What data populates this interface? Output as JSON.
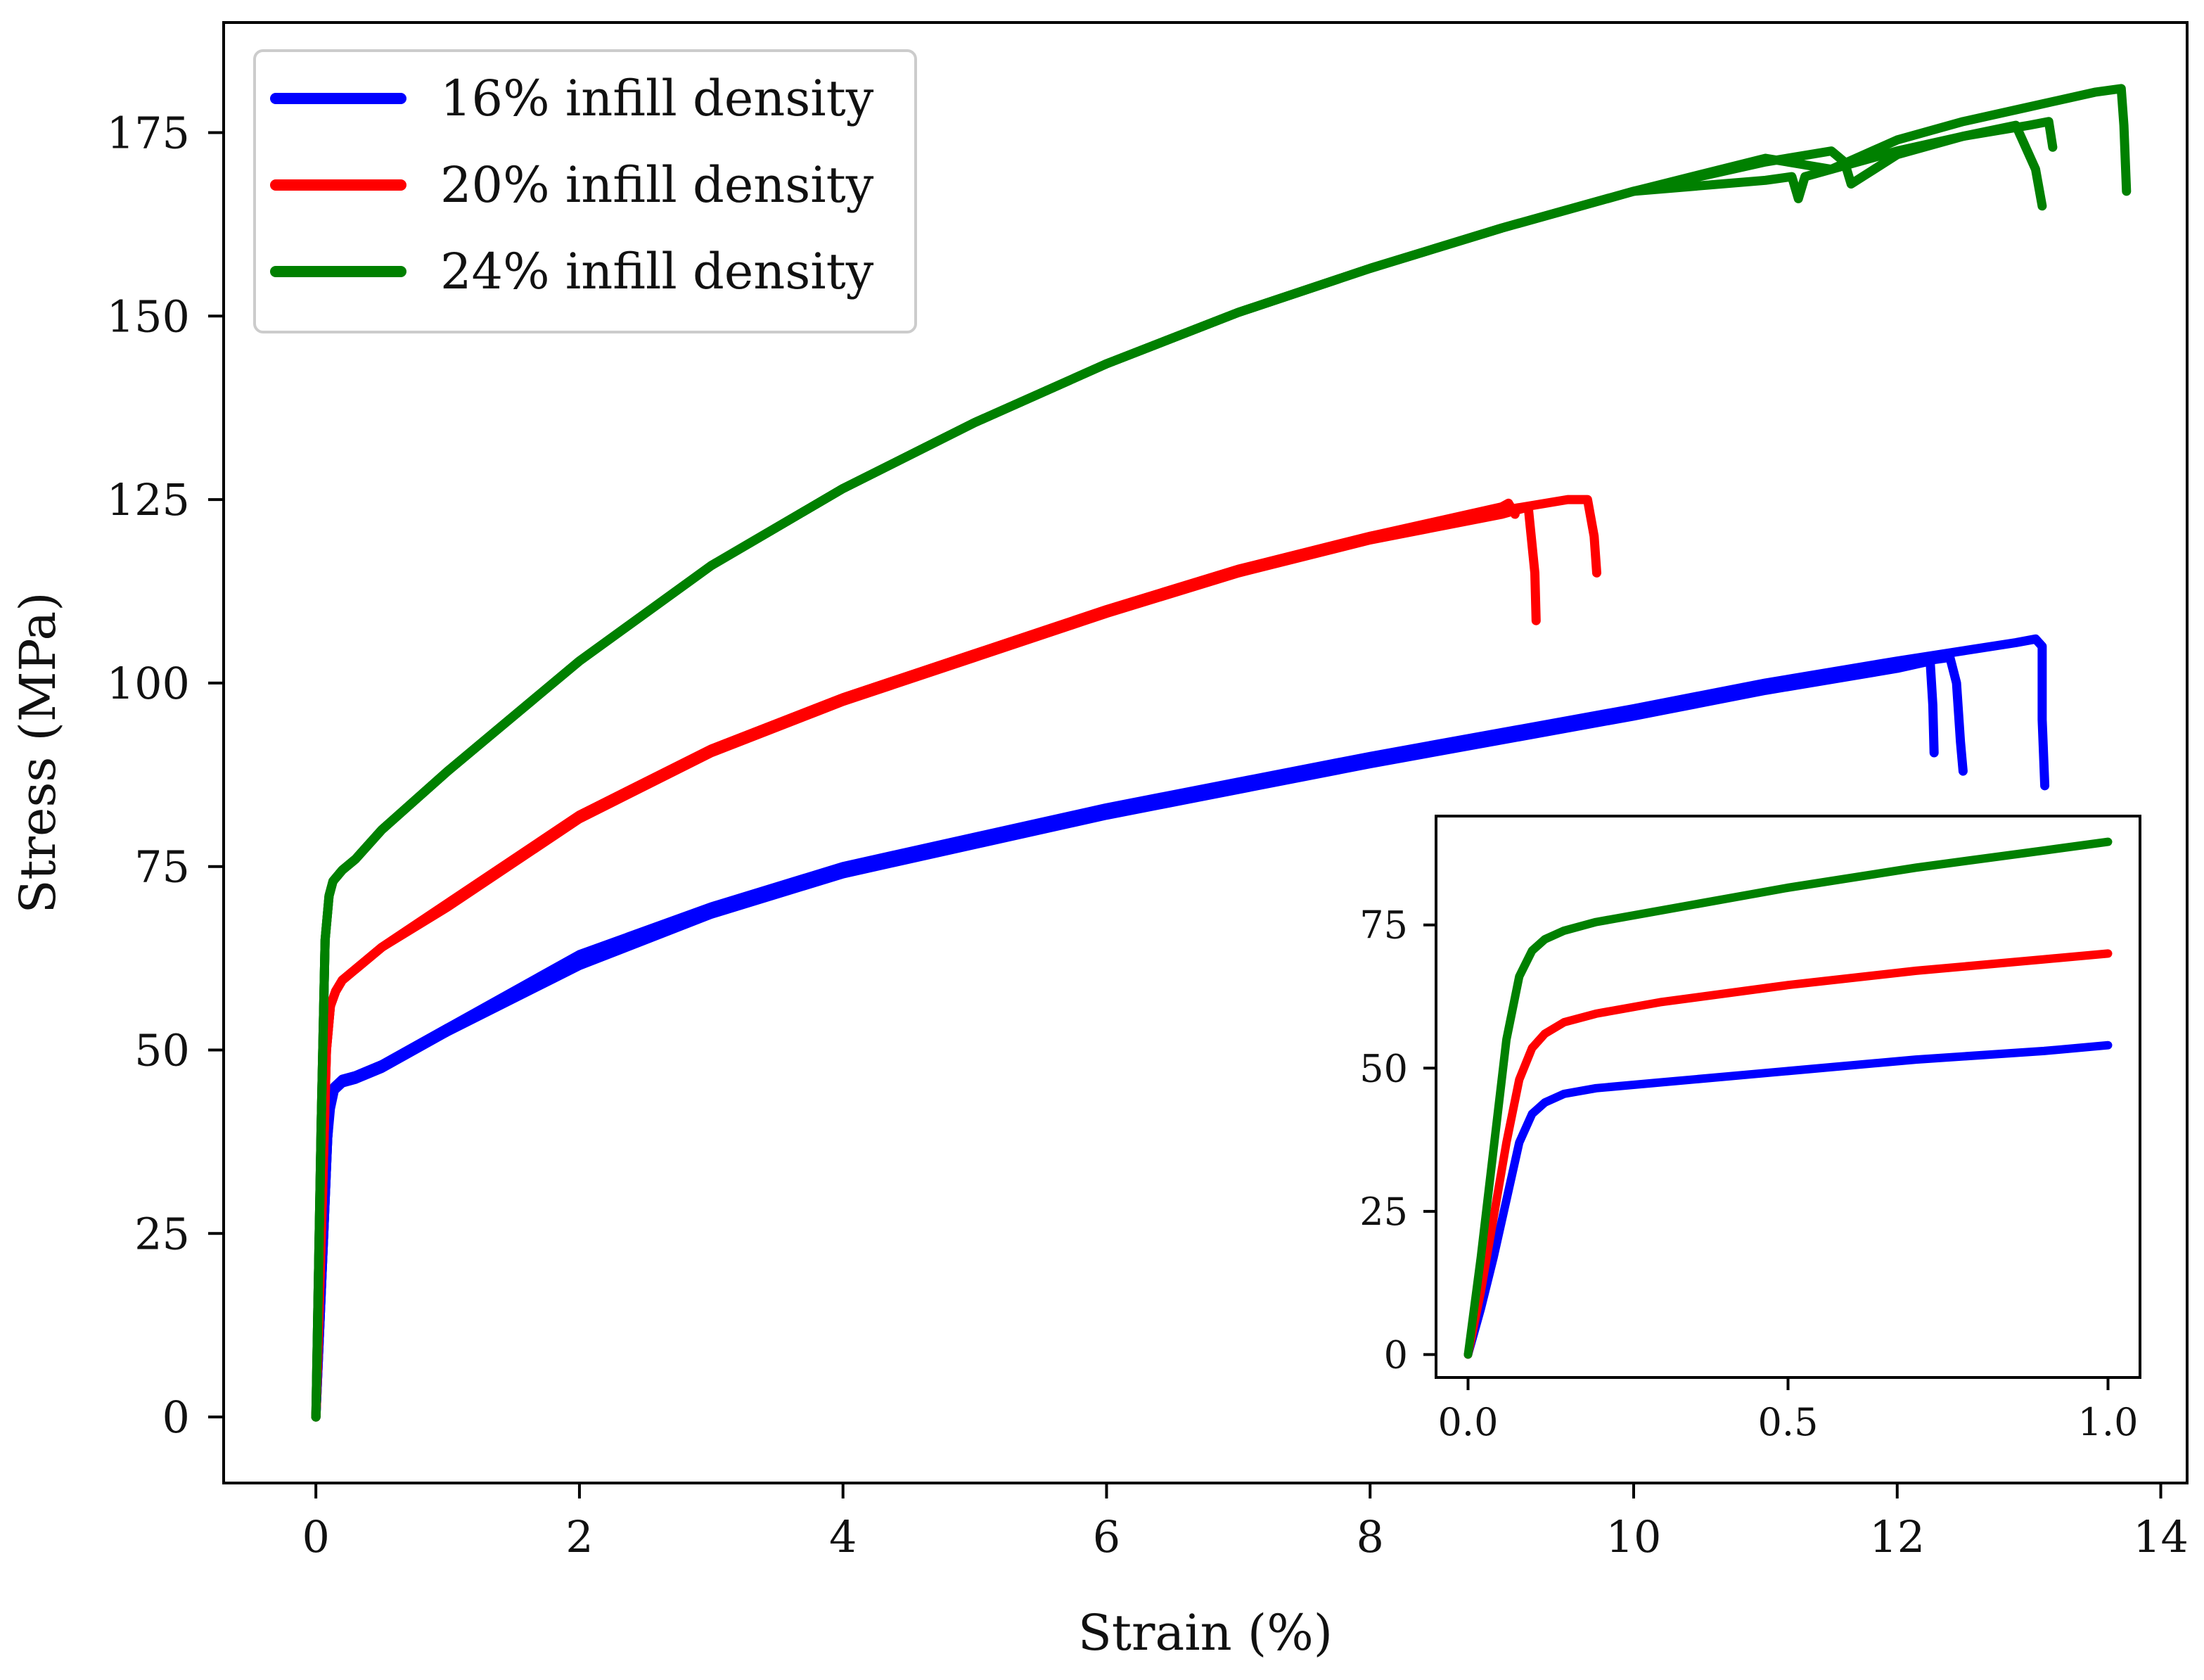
{
  "chart_data": [
    {
      "type": "line",
      "title": "",
      "xlabel": "Strain (%)",
      "ylabel": "Stress (MPa)",
      "xlim": [
        -0.7,
        14.2
      ],
      "ylim": [
        -9,
        190
      ],
      "xticks": [
        0,
        2,
        4,
        6,
        8,
        10,
        12,
        14
      ],
      "yticks": [
        0,
        25,
        50,
        75,
        100,
        125,
        150,
        175
      ],
      "legend_position": "top-left",
      "series": [
        {
          "name": "16% infill density",
          "color": "#0000ff",
          "specimens": [
            {
              "x": [
                0,
                0.06,
                0.09,
                0.11,
                0.14,
                0.2,
                0.3,
                0.5,
                1,
                2,
                3,
                4,
                6,
                8,
                10,
                11,
                12,
                12.9,
                13.05,
                13.1,
                13.1,
                13.12
              ],
              "y": [
                0,
                25,
                38,
                43,
                45,
                46,
                46.5,
                48,
                53,
                63,
                69.5,
                75,
                83,
                90,
                96.5,
                100,
                103,
                105.5,
                106,
                105,
                95,
                86
              ]
            },
            {
              "x": [
                0,
                0.06,
                0.09,
                0.11,
                0.14,
                0.2,
                0.3,
                0.5,
                1,
                2,
                3,
                4,
                6,
                8,
                10,
                11,
                12,
                12.4,
                12.45,
                12.48,
                12.5
              ],
              "y": [
                0,
                25,
                38,
                43,
                45,
                46,
                46.5,
                48,
                53,
                62,
                69,
                74.5,
                82.5,
                89.5,
                96,
                99.5,
                102.5,
                103.5,
                100,
                92,
                88
              ]
            },
            {
              "x": [
                0,
                0.06,
                0.09,
                0.11,
                0.14,
                0.2,
                0.3,
                0.5,
                1,
                2,
                3,
                4,
                6,
                8,
                10,
                11,
                12,
                12.25,
                12.27,
                12.28
              ],
              "y": [
                0,
                25,
                38,
                42,
                44.5,
                45.5,
                46,
                47.5,
                52.5,
                61.5,
                68.5,
                74,
                82,
                89,
                95.5,
                99,
                102,
                103,
                97,
                90.5
              ]
            }
          ]
        },
        {
          "name": "20% infill density",
          "color": "#ff0000",
          "specimens": [
            {
              "x": [
                0,
                0.05,
                0.08,
                0.11,
                0.15,
                0.2,
                0.3,
                0.5,
                1,
                2,
                3,
                4,
                5,
                6,
                7,
                8,
                9,
                9.5,
                9.65,
                9.7,
                9.72
              ],
              "y": [
                0,
                30,
                50,
                56,
                58,
                59.5,
                61,
                64,
                70,
                82,
                91,
                98,
                104,
                110,
                115.5,
                120,
                123.5,
                125,
                125,
                120,
                115
              ]
            },
            {
              "x": [
                0,
                0.05,
                0.08,
                0.11,
                0.15,
                0.2,
                0.3,
                0.5,
                1,
                2,
                3,
                4,
                5,
                6,
                7,
                8,
                9,
                9.2,
                9.25,
                9.26
              ],
              "y": [
                0,
                30,
                50,
                56,
                58,
                59.5,
                61,
                64,
                69.5,
                81.5,
                90.5,
                97.5,
                103.5,
                109.5,
                115,
                119.5,
                123,
                124,
                115,
                108.5
              ]
            },
            {
              "x": [
                0,
                0.05,
                0.08,
                0.11,
                0.15,
                0.2,
                0.3,
                0.5,
                1,
                2,
                3,
                4,
                5,
                6,
                7,
                8,
                9,
                9.05,
                9.1
              ],
              "y": [
                0,
                30,
                50,
                56,
                58,
                59.5,
                61,
                64,
                70,
                82,
                91,
                98,
                104,
                110,
                115.5,
                120,
                124,
                124.5,
                123
              ]
            }
          ]
        },
        {
          "name": "24% infill density",
          "color": "#008000",
          "specimens": [
            {
              "x": [
                0,
                0.04,
                0.07,
                0.1,
                0.13,
                0.2,
                0.3,
                0.5,
                1,
                2,
                3,
                4,
                5,
                6,
                7,
                8,
                9,
                10,
                11,
                11.5,
                12,
                12.5,
                13,
                13.5,
                13.7,
                13.72,
                13.74
              ],
              "y": [
                0,
                40,
                65,
                71,
                73,
                74.5,
                76,
                80,
                88,
                103,
                116,
                126.5,
                135.5,
                143.5,
                150.5,
                156.5,
                162,
                167,
                171.5,
                170,
                174,
                176.5,
                178.5,
                180.5,
                181,
                176,
                167
              ]
            },
            {
              "x": [
                0,
                0.04,
                0.07,
                0.1,
                0.13,
                0.2,
                0.3,
                0.5,
                1,
                2,
                3,
                4,
                5,
                6,
                7,
                8,
                9,
                10,
                11,
                11.5,
                11.6,
                11.65,
                12,
                12.5,
                12.9,
                13.05,
                13.1
              ],
              "y": [
                0,
                40,
                65,
                71,
                73,
                74.5,
                76,
                80,
                88,
                103,
                116,
                126.5,
                135.5,
                143.5,
                150.5,
                156.5,
                162,
                167,
                171,
                172.5,
                171,
                168,
                172,
                174.5,
                176,
                170,
                165
              ]
            },
            {
              "x": [
                0,
                0.04,
                0.07,
                0.1,
                0.13,
                0.2,
                0.3,
                0.5,
                1,
                2,
                3,
                4,
                5,
                6,
                7,
                8,
                9,
                10,
                11,
                11.2,
                11.25,
                11.3,
                12,
                12.5,
                13,
                13.15,
                13.18
              ],
              "y": [
                0,
                40,
                65,
                71,
                73,
                74.5,
                76,
                80,
                88,
                103,
                116,
                126.5,
                135.5,
                143.5,
                150.5,
                156.5,
                162,
                167,
                168.5,
                169,
                166,
                169,
                172.5,
                174.5,
                176,
                176.5,
                173
              ]
            }
          ]
        }
      ]
    },
    {
      "type": "line",
      "title": "",
      "xlabel": "",
      "ylabel": "",
      "xlim": [
        -0.05,
        1.05
      ],
      "ylim": [
        -4,
        94
      ],
      "xticks": [
        0.0,
        0.5,
        1.0
      ],
      "xtick_labels": [
        "0.0",
        "0.5",
        "1.0"
      ],
      "yticks": [
        0,
        25,
        50,
        75
      ],
      "placement": "bottom-right inset",
      "series": [
        {
          "name": "16% infill density",
          "color": "#0000ff",
          "x": [
            0,
            0.02,
            0.04,
            0.06,
            0.08,
            0.1,
            0.12,
            0.15,
            0.2,
            0.3,
            0.5,
            0.7,
            0.9,
            1.0
          ],
          "y": [
            0,
            8,
            17,
            27,
            37,
            42,
            44,
            45.5,
            46.5,
            47.5,
            49.5,
            51.5,
            53,
            54
          ]
        },
        {
          "name": "20% infill density",
          "color": "#ff0000",
          "x": [
            0,
            0.02,
            0.04,
            0.06,
            0.08,
            0.1,
            0.12,
            0.15,
            0.2,
            0.3,
            0.5,
            0.7,
            0.9,
            1.0
          ],
          "y": [
            0,
            11,
            24,
            37,
            48,
            53.5,
            56,
            58,
            59.5,
            61.5,
            64.5,
            67,
            69,
            70
          ]
        },
        {
          "name": "24% infill density",
          "color": "#008000",
          "x": [
            0,
            0.02,
            0.04,
            0.06,
            0.08,
            0.1,
            0.12,
            0.15,
            0.2,
            0.3,
            0.5,
            0.7,
            0.9,
            1.0
          ],
          "y": [
            0,
            17,
            36,
            55,
            66,
            70.5,
            72.5,
            74,
            75.5,
            77.5,
            81.5,
            85,
            88,
            89.5
          ]
        }
      ]
    }
  ]
}
